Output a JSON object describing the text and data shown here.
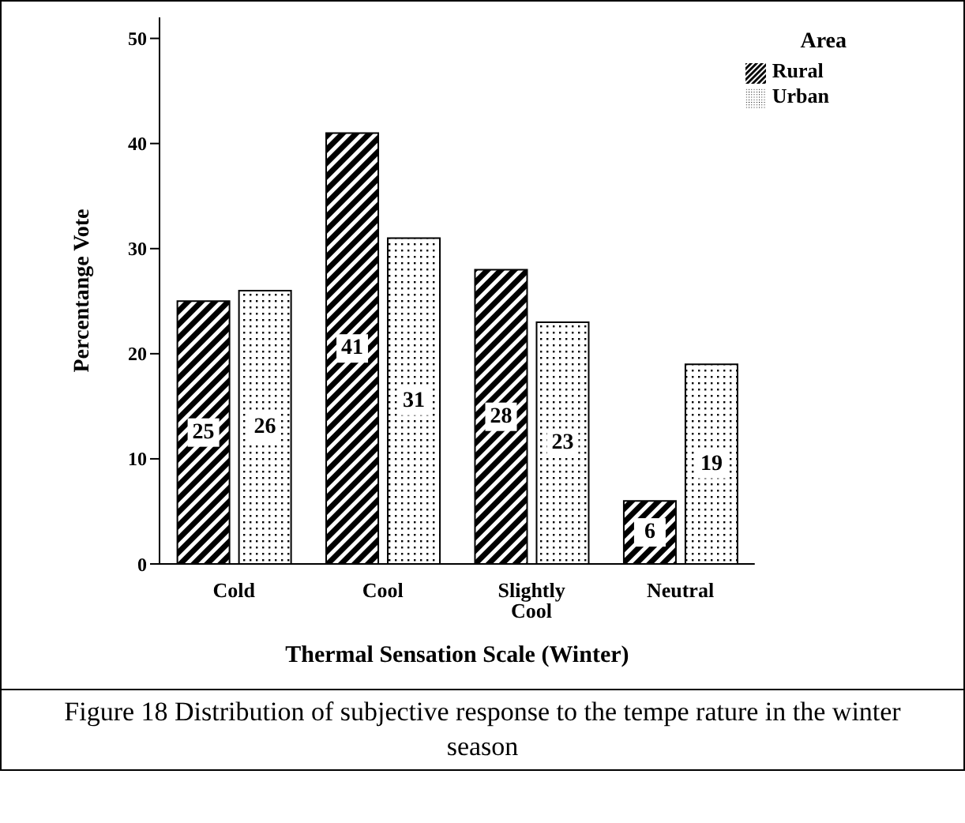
{
  "chart_data": {
    "type": "bar",
    "xlabel": "Thermal Sensation Scale (Winter)",
    "ylabel": "Percentange Vote",
    "legend_title": "Area",
    "categories": [
      "Cold",
      "Cool",
      "Slightly Cool",
      "Neutral"
    ],
    "series": [
      {
        "name": "Rural",
        "color": "#000000",
        "values": [
          25,
          41,
          28,
          6
        ]
      },
      {
        "name": "Urban",
        "color": "#000000",
        "values": [
          26,
          31,
          23,
          19
        ]
      }
    ],
    "ylim": [
      0,
      52
    ],
    "yticks": [
      0,
      10,
      20,
      30,
      40,
      50
    ],
    "grid": false,
    "legend": "top right",
    "data_labels": true,
    "annotations": [
      "Figure 18 Distribution of subjective response to the tempe rature in the winter season"
    ]
  }
}
